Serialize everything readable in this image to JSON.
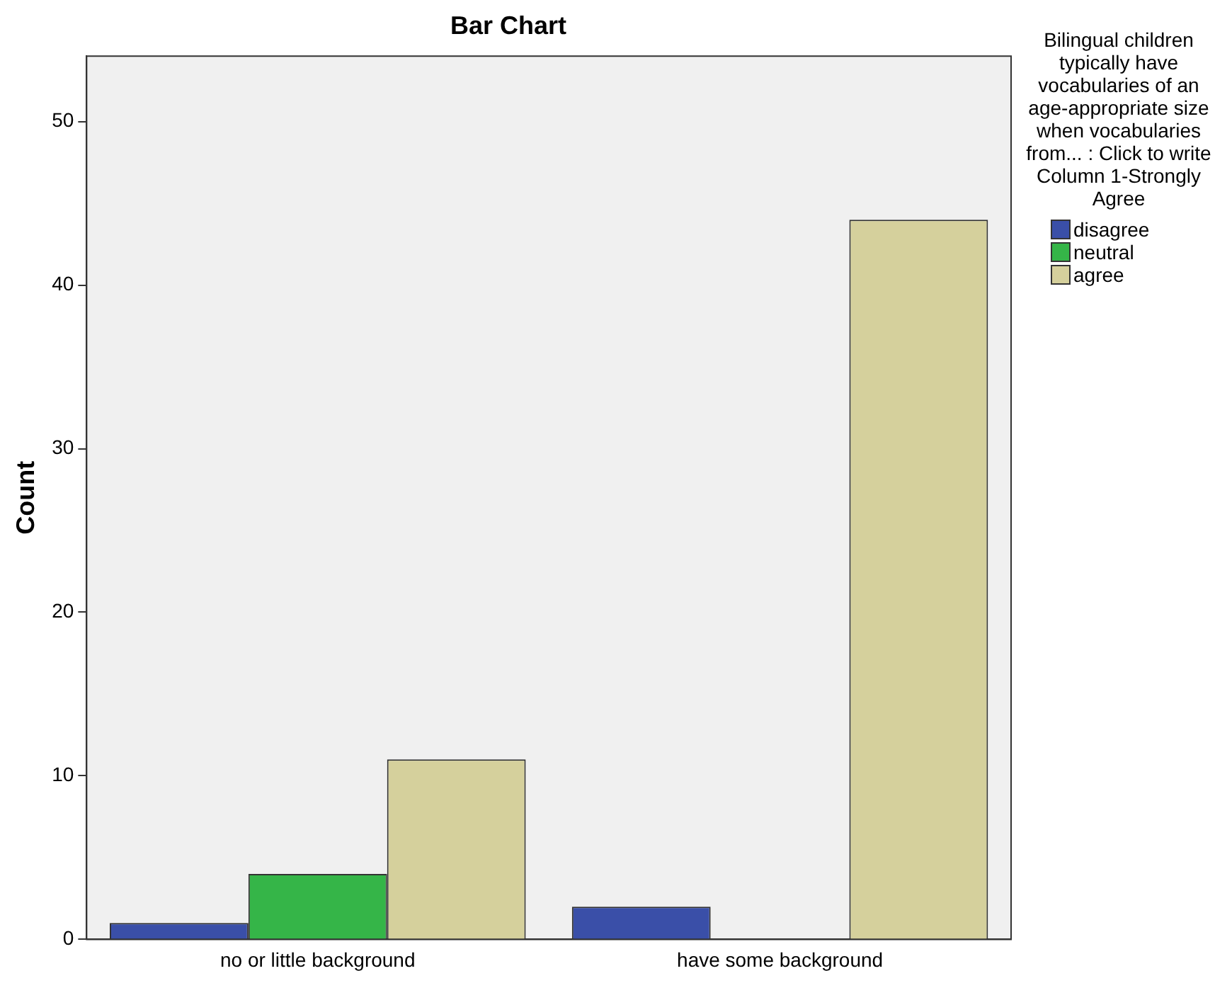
{
  "chart_data": {
    "type": "bar",
    "title": "Bar Chart",
    "ylabel": "Count",
    "legend_title": "Bilingual children typically have vocabularies of an age-appropriate size when vocabularies from... : Click to write Column 1-Strongly Agree",
    "categories": [
      "no or little background",
      "have some background"
    ],
    "series": [
      {
        "name": "disagree",
        "color": "#3a4fa8",
        "values": [
          1,
          2
        ]
      },
      {
        "name": "neutral",
        "color": "#35b548",
        "values": [
          4,
          0
        ]
      },
      {
        "name": "agree",
        "color": "#d5d09c",
        "values": [
          11,
          44
        ]
      }
    ],
    "ylim": [
      0,
      54
    ],
    "yticks": [
      0,
      10,
      20,
      30,
      40,
      50
    ],
    "grid": false,
    "legend": "right"
  }
}
